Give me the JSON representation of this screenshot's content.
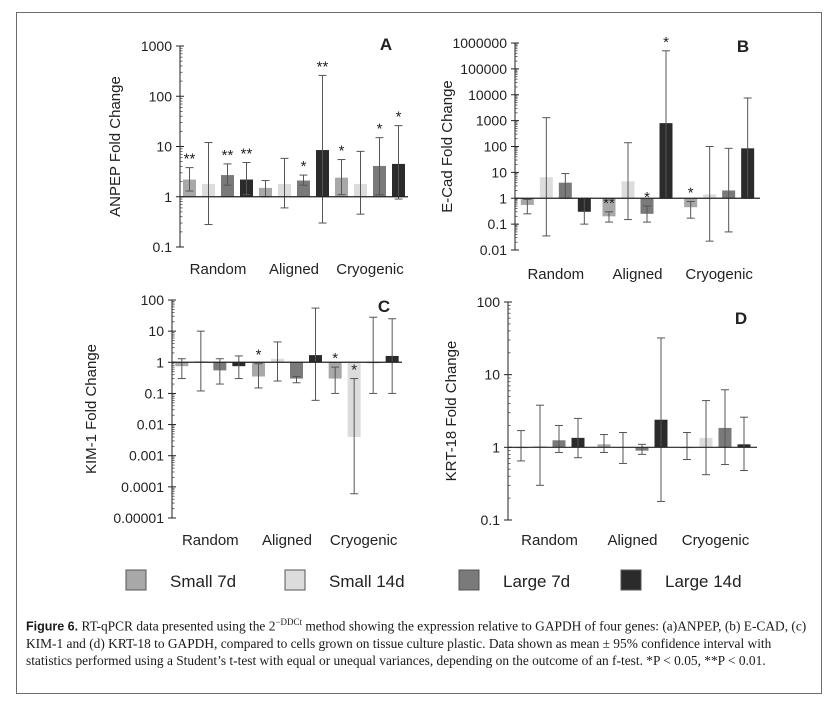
{
  "legend": [
    {
      "name": "Small 7d",
      "color": "#a8a8a8"
    },
    {
      "name": "Small 14d",
      "color": "#dcdcdc"
    },
    {
      "name": "Large 7d",
      "color": "#7a7a7a"
    },
    {
      "name": "Large 14d",
      "color": "#2b2b2b"
    }
  ],
  "caption": {
    "lead": "Figure 6.",
    "text_a": " RT-qPCR data presented using the 2",
    "superscript": "−DDCt",
    "text_b": " method showing the expression relative to GAPDH of four genes: (a)ANPEP, (b) E-CAD, (c) KIM-1 and (d) KRT-18 to GAPDH, compared to cells grown on tissue culture plastic. Data shown as mean ± 95% confidence interval with statistics performed using a Student’s t-test with equal or unequal variances, depending on the outcome of an f-test. *P < 0.05, **P < 0.01."
  },
  "chart_data": [
    {
      "panel": "A",
      "type": "bar",
      "scale": "log",
      "ylabel": "ANPEP Fold Change",
      "ylim": [
        0.1,
        1000
      ],
      "ticks": [
        "0.1",
        "1",
        "10",
        "100",
        "1000"
      ],
      "categories": [
        "Random",
        "Aligned",
        "Cryogenic"
      ],
      "series": [
        {
          "name": "Small 7d",
          "values": [
            2.2,
            1.5,
            2.4
          ],
          "upper": [
            3.8,
            2.1,
            5.5
          ],
          "lower": [
            1.3,
            1.0,
            1.1
          ],
          "sig": [
            "**",
            "",
            "*"
          ]
        },
        {
          "name": "Small 14d",
          "values": [
            1.8,
            1.8,
            1.8
          ],
          "upper": [
            12,
            5.8,
            8.0
          ],
          "lower": [
            0.28,
            0.6,
            0.45
          ],
          "sig": [
            "",
            "",
            ""
          ]
        },
        {
          "name": "Large 7d",
          "values": [
            2.7,
            2.1,
            4.1
          ],
          "upper": [
            4.5,
            2.7,
            15
          ],
          "lower": [
            1.7,
            1.7,
            1.1
          ],
          "sig": [
            "**",
            "*",
            "*"
          ]
        },
        {
          "name": "Large 14d",
          "values": [
            2.2,
            8.5,
            4.5
          ],
          "upper": [
            4.8,
            260,
            26
          ],
          "lower": [
            1.1,
            0.3,
            0.9
          ],
          "sig": [
            "**",
            "**",
            "*"
          ]
        }
      ]
    },
    {
      "panel": "B",
      "type": "bar",
      "scale": "log",
      "ylabel": "E-Cad Fold Change",
      "ylim": [
        0.01,
        1000000
      ],
      "ticks": [
        "0.01",
        "0.1",
        "1",
        "10",
        "100",
        "1000",
        "10000",
        "100000",
        "1000000"
      ],
      "categories": [
        "Random",
        "Aligned",
        "Cryogenic"
      ],
      "series": [
        {
          "name": "Small 7d",
          "values": [
            0.55,
            0.2,
            0.45
          ],
          "upper": [
            0.9,
            0.3,
            0.75
          ],
          "lower": [
            0.25,
            0.12,
            0.17
          ],
          "sig": [
            "",
            "**",
            "*"
          ]
        },
        {
          "name": "Small 14d",
          "values": [
            6.5,
            4.5,
            1.4
          ],
          "upper": [
            1300,
            140,
            100
          ],
          "lower": [
            0.035,
            0.15,
            0.022
          ],
          "sig": [
            "",
            "",
            ""
          ]
        },
        {
          "name": "Large 7d",
          "values": [
            4.0,
            0.25,
            2.0
          ],
          "upper": [
            9.0,
            0.5,
            85
          ],
          "lower": [
            1.0,
            0.12,
            0.05
          ],
          "sig": [
            "",
            "*",
            ""
          ]
        },
        {
          "name": "Large 14d",
          "values": [
            0.3,
            800,
            85
          ],
          "upper": [
            1.0,
            500000,
            7500
          ],
          "lower": [
            0.1,
            1.0,
            1.0
          ],
          "sig": [
            "",
            "*",
            ""
          ]
        }
      ]
    },
    {
      "panel": "C",
      "type": "bar",
      "scale": "log",
      "ylabel": "KIM-1 Fold Change",
      "ylim": [
        1e-05,
        100
      ],
      "ticks": [
        "0.00001",
        "0.0001",
        "0.001",
        "0.01",
        "0.1",
        "1",
        "10",
        "100"
      ],
      "categories": [
        "Random",
        "Aligned",
        "Cryogenic"
      ],
      "series": [
        {
          "name": "Small 7d",
          "values": [
            0.75,
            0.35,
            0.3
          ],
          "upper": [
            1.3,
            0.9,
            0.7
          ],
          "lower": [
            0.3,
            0.15,
            0.1
          ],
          "sig": [
            "",
            "*",
            "*"
          ]
        },
        {
          "name": "Small 14d",
          "values": [
            1.1,
            1.3,
            0.004
          ],
          "upper": [
            10,
            4.5,
            0.3
          ],
          "lower": [
            0.12,
            0.25,
            6e-05
          ],
          "sig": [
            "",
            "",
            "*"
          ]
        },
        {
          "name": "Large 7d",
          "values": [
            0.55,
            0.3,
            1.0
          ],
          "upper": [
            1.3,
            0.35,
            28
          ],
          "lower": [
            0.2,
            0.22,
            0.1
          ],
          "sig": [
            "",
            "",
            ""
          ]
        },
        {
          "name": "Large 14d",
          "values": [
            0.75,
            1.7,
            1.6
          ],
          "upper": [
            1.6,
            55,
            25
          ],
          "lower": [
            0.3,
            0.06,
            0.1
          ],
          "sig": [
            "",
            "",
            ""
          ]
        }
      ]
    },
    {
      "panel": "D",
      "type": "bar",
      "scale": "log",
      "ylabel": "KRT-18 Fold Change",
      "ylim": [
        0.1,
        100
      ],
      "ticks": [
        "0.1",
        "1",
        "10",
        "100"
      ],
      "categories": [
        "Random",
        "Aligned",
        "Cryogenic"
      ],
      "series": [
        {
          "name": "Small 7d",
          "values": [
            1.0,
            1.1,
            1.0
          ],
          "upper": [
            1.7,
            1.5,
            1.6
          ],
          "lower": [
            0.65,
            0.85,
            0.68
          ],
          "sig": [
            "",
            "",
            ""
          ]
        },
        {
          "name": "Small 14d",
          "values": [
            1.05,
            1.0,
            1.35
          ],
          "upper": [
            3.8,
            1.6,
            4.4
          ],
          "lower": [
            0.3,
            0.6,
            0.42
          ],
          "sig": [
            "",
            "",
            ""
          ]
        },
        {
          "name": "Large 7d",
          "values": [
            1.25,
            0.9,
            1.85
          ],
          "upper": [
            2.0,
            1.1,
            6.2
          ],
          "lower": [
            0.85,
            0.8,
            0.58
          ],
          "sig": [
            "",
            "",
            ""
          ]
        },
        {
          "name": "Large 14d",
          "values": [
            1.35,
            2.4,
            1.1
          ],
          "upper": [
            2.5,
            32,
            2.6
          ],
          "lower": [
            0.72,
            0.18,
            0.48
          ],
          "sig": [
            "",
            "",
            ""
          ]
        }
      ]
    }
  ]
}
